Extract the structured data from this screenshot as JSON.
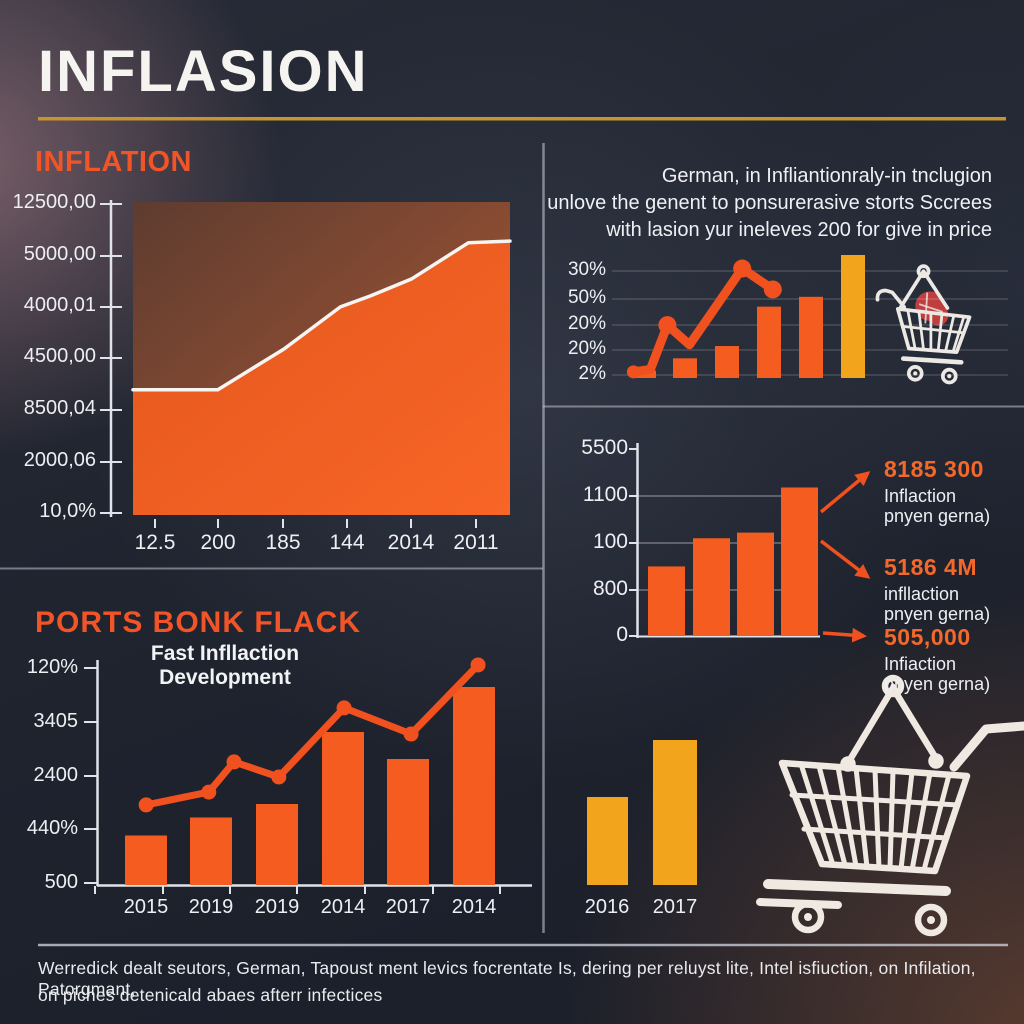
{
  "title": "INFLASION",
  "colors": {
    "orange": "#f45d1f",
    "orange_line": "#f0511f",
    "gold": "#f2a41c",
    "underline_gold": "#c6952f",
    "heading_orange": "#f15427",
    "white_line": "#f7f5f1",
    "axis": "#dfe3ea",
    "text": "#eef0f4",
    "background": "#20242f",
    "cart_red": "#c84040"
  },
  "sections": {
    "top_left": {
      "heading": "INFLATION",
      "y_labels": [
        "12500,00",
        "5000,00",
        "4000,01",
        "4500,00",
        "8500,04",
        "2000,06",
        "10,0%"
      ],
      "x_labels": [
        "12.5",
        "200",
        "185",
        "144",
        "2014",
        "2011"
      ]
    },
    "top_right": {
      "paragraph_lines": [
        "German, in Infliantionraly-in tnclugion",
        "unlove the genent to ponsurerasive storts Sccrees",
        "with lasion yur ineleves 200 for give in price"
      ],
      "y_labels": [
        "30%",
        "50%",
        "20%",
        "20%",
        "2%"
      ]
    },
    "mid_right": {
      "y_labels": [
        "5500",
        "1100",
        "100",
        "800",
        "0"
      ],
      "callouts": [
        {
          "value": "8185 300",
          "caption_lines": [
            "Inflaction",
            "pnyen gerna)"
          ]
        },
        {
          "value": "5186 4M",
          "caption_lines": [
            "infllaction",
            "pnyen gerna)"
          ]
        },
        {
          "value": "505,000",
          "caption_lines": [
            "Infiaction",
            "pnyen gerna)"
          ]
        }
      ]
    },
    "bottom_left": {
      "heading": "PORTS BONK FLACK",
      "subtitle": "Fast Infllaction Development",
      "y_labels": [
        "120%",
        "3405",
        "2400",
        "440%",
        "500"
      ],
      "x_labels": [
        "2015",
        "2019",
        "2019",
        "2014",
        "2017",
        "2014"
      ]
    },
    "bottom_right": {
      "x_labels": [
        "2016",
        "2017"
      ]
    },
    "footer": {
      "lines": [
        "Werredick dealt seutors, German, Tapoust ment levics focrentate Is, dering per reluyst lite, Intel isfiuction, on Infilation, Patorgmant,",
        "on piches detenicald abaes afterr infectices"
      ]
    }
  },
  "chart_data": [
    {
      "type": "area",
      "title": "INFLATION",
      "y_tick_labels": [
        "12500,00",
        "5000,00",
        "4000,01",
        "4500,00",
        "8500,04",
        "2000,06",
        "10,0%"
      ],
      "x_tick_labels": [
        "12.5",
        "200",
        "185",
        "144",
        "2014",
        "2011"
      ],
      "line_points_frac": [
        [
          0,
          0.6
        ],
        [
          0.225,
          0.6
        ],
        [
          0.4,
          0.47
        ],
        [
          0.55,
          0.335
        ],
        [
          0.63,
          0.3
        ],
        [
          0.74,
          0.245
        ],
        [
          0.89,
          0.13
        ],
        [
          1,
          0.125
        ]
      ],
      "note": "white trend line over solid orange area; y fractions measured from plot top"
    },
    {
      "type": "bar+line",
      "y_tick_labels": [
        "30%",
        "50%",
        "20%",
        "20%",
        "2%"
      ],
      "bar_heights_frac": [
        0.06,
        0.16,
        0.26,
        0.58,
        0.66,
        1.0
      ],
      "bar_colors": [
        "orange",
        "orange",
        "orange",
        "orange",
        "orange",
        "gold"
      ],
      "line_points_frac": [
        [
          0.02,
          0.05
        ],
        [
          0.12,
          0.07
        ],
        [
          0.22,
          0.43
        ],
        [
          0.35,
          0.27
        ],
        [
          0.66,
          0.89
        ],
        [
          0.84,
          0.72
        ]
      ],
      "grid": true
    },
    {
      "type": "bar",
      "y_tick_labels": [
        "5500",
        "1100",
        "100",
        "800",
        "0"
      ],
      "bar_heights_frac": [
        0.37,
        0.52,
        0.55,
        0.79
      ],
      "callout_values": [
        "8185 300",
        "5186 4M",
        "505,000"
      ]
    },
    {
      "type": "bar+line",
      "title": "Fast Infllaction Development",
      "categories": [
        "2015",
        "2019",
        "2019",
        "2014",
        "2017",
        "2014"
      ],
      "y_tick_labels": [
        "120%",
        "3405",
        "2400",
        "440%",
        "500"
      ],
      "bar_heights_frac": [
        0.22,
        0.3,
        0.36,
        0.68,
        0.56,
        0.88
      ],
      "line_points_frac": [
        [
          0.113,
          0.356
        ],
        [
          0.257,
          0.413
        ],
        [
          0.315,
          0.547
        ],
        [
          0.418,
          0.48
        ],
        [
          0.568,
          0.787
        ],
        [
          0.722,
          0.671
        ],
        [
          0.876,
          0.978
        ]
      ]
    },
    {
      "type": "bar",
      "categories": [
        "2016",
        "2017"
      ],
      "bar_heights_frac": [
        0.44,
        0.725
      ],
      "bar_color": "gold"
    }
  ]
}
